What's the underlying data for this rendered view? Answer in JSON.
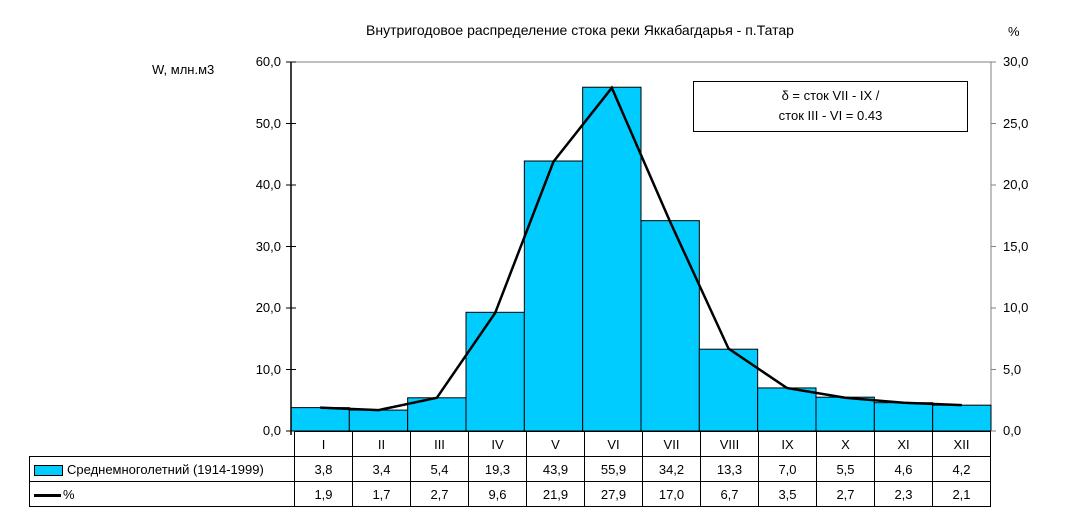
{
  "chart": {
    "title": "Внутригодовое распределение стока реки Яккабагдарья - п.Татар",
    "ylabel_left": "W, млн.м3",
    "ylabel_right": "%",
    "left_ticks": [
      "60,0",
      "50,0",
      "40,0",
      "30,0",
      "20,0",
      "10,0",
      "0,0"
    ],
    "right_ticks": [
      "30,0",
      "25,0",
      "20,0",
      "15,0",
      "10,0",
      "5,0",
      "0,0"
    ],
    "annotation_line1": "δ = сток VII - IX /",
    "annotation_line2": "сток III - VI = 0.43",
    "bar_color": "#00ccff",
    "line_color": "#000000"
  },
  "table": {
    "months": [
      "I",
      "II",
      "III",
      "IV",
      "V",
      "VI",
      "VII",
      "VIII",
      "IX",
      "X",
      "XI",
      "XII"
    ],
    "series1_label": "Среднемноголетний (1914-1999)",
    "series1_values": [
      "3,8",
      "3,4",
      "5,4",
      "19,3",
      "43,9",
      "55,9",
      "34,2",
      "13,3",
      "7,0",
      "5,5",
      "4,6",
      "4,2"
    ],
    "series2_label": "%",
    "series2_values": [
      "1,9",
      "1,7",
      "2,7",
      "9,6",
      "21,9",
      "27,9",
      "17,0",
      "6,7",
      "3,5",
      "2,7",
      "2,3",
      "2,1"
    ]
  },
  "chart_data": {
    "type": "bar",
    "title": "Внутригодовое распределение стока реки Яккабагдарья - п.Татар",
    "xlabel": "",
    "ylabel": "W, млн.м3",
    "ylabel_secondary": "%",
    "categories": [
      "I",
      "II",
      "III",
      "IV",
      "V",
      "VI",
      "VII",
      "VIII",
      "IX",
      "X",
      "XI",
      "XII"
    ],
    "series": [
      {
        "name": "Среднемноголетний (1914-1999)",
        "type": "bar",
        "axis": "left",
        "values": [
          3.8,
          3.4,
          5.4,
          19.3,
          43.9,
          55.9,
          34.2,
          13.3,
          7.0,
          5.5,
          4.6,
          4.2
        ]
      },
      {
        "name": "%",
        "type": "line",
        "axis": "right",
        "values": [
          1.9,
          1.7,
          2.7,
          9.6,
          21.9,
          27.9,
          17.0,
          6.7,
          3.5,
          2.7,
          2.3,
          2.1
        ]
      }
    ],
    "ylim": [
      0,
      60
    ],
    "ylim_secondary": [
      0,
      30
    ],
    "grid": false,
    "legend_position": "data-table-bottom",
    "annotations": [
      "δ = сток VII - IX / сток III - VI = 0.43"
    ]
  }
}
